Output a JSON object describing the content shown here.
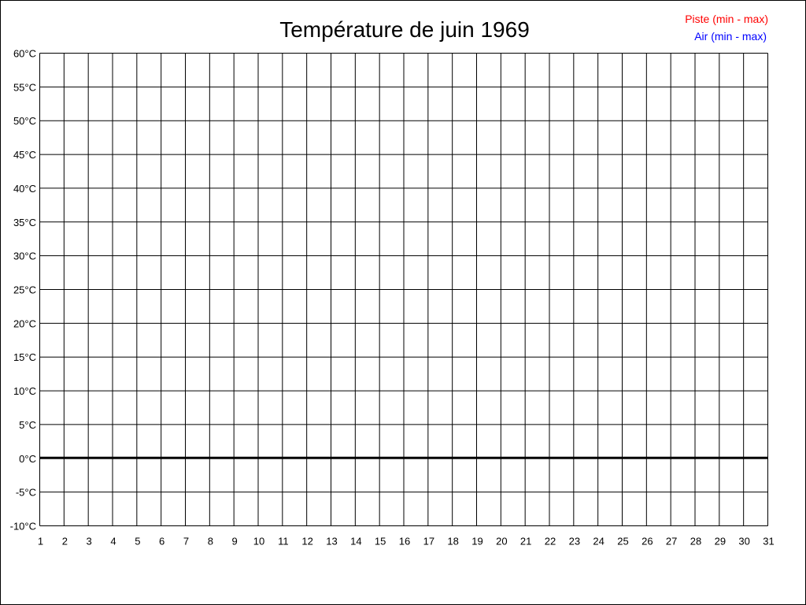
{
  "chart_data": {
    "type": "line",
    "title": "Température de juin 1969",
    "legend": {
      "placement": "top-right",
      "entries": [
        {
          "name": "Piste (min - max)",
          "color": "#ff0000"
        },
        {
          "name": "Air (min - max)",
          "color": "#0000ff"
        }
      ]
    },
    "x": {
      "min": 1,
      "max": 31,
      "ticks": [
        "1",
        "2",
        "3",
        "4",
        "5",
        "6",
        "7",
        "8",
        "9",
        "10",
        "11",
        "12",
        "13",
        "14",
        "15",
        "16",
        "17",
        "18",
        "19",
        "20",
        "21",
        "22",
        "23",
        "24",
        "25",
        "26",
        "27",
        "28",
        "29",
        "30",
        "31"
      ]
    },
    "y": {
      "min": -10,
      "max": 60,
      "unit": "°C",
      "ticks": [
        "60°C",
        "55°C",
        "50°C",
        "45°C",
        "40°C",
        "35°C",
        "30°C",
        "25°C",
        "20°C",
        "15°C",
        "10°C",
        "5°C",
        "0°C",
        "-5°C",
        "-10°C"
      ]
    },
    "grid": true,
    "zero_line": true,
    "series": [
      {
        "name": "Piste (min - max)",
        "color": "#ff0000",
        "values": []
      },
      {
        "name": "Air (min - max)",
        "color": "#0000ff",
        "values": []
      }
    ]
  }
}
